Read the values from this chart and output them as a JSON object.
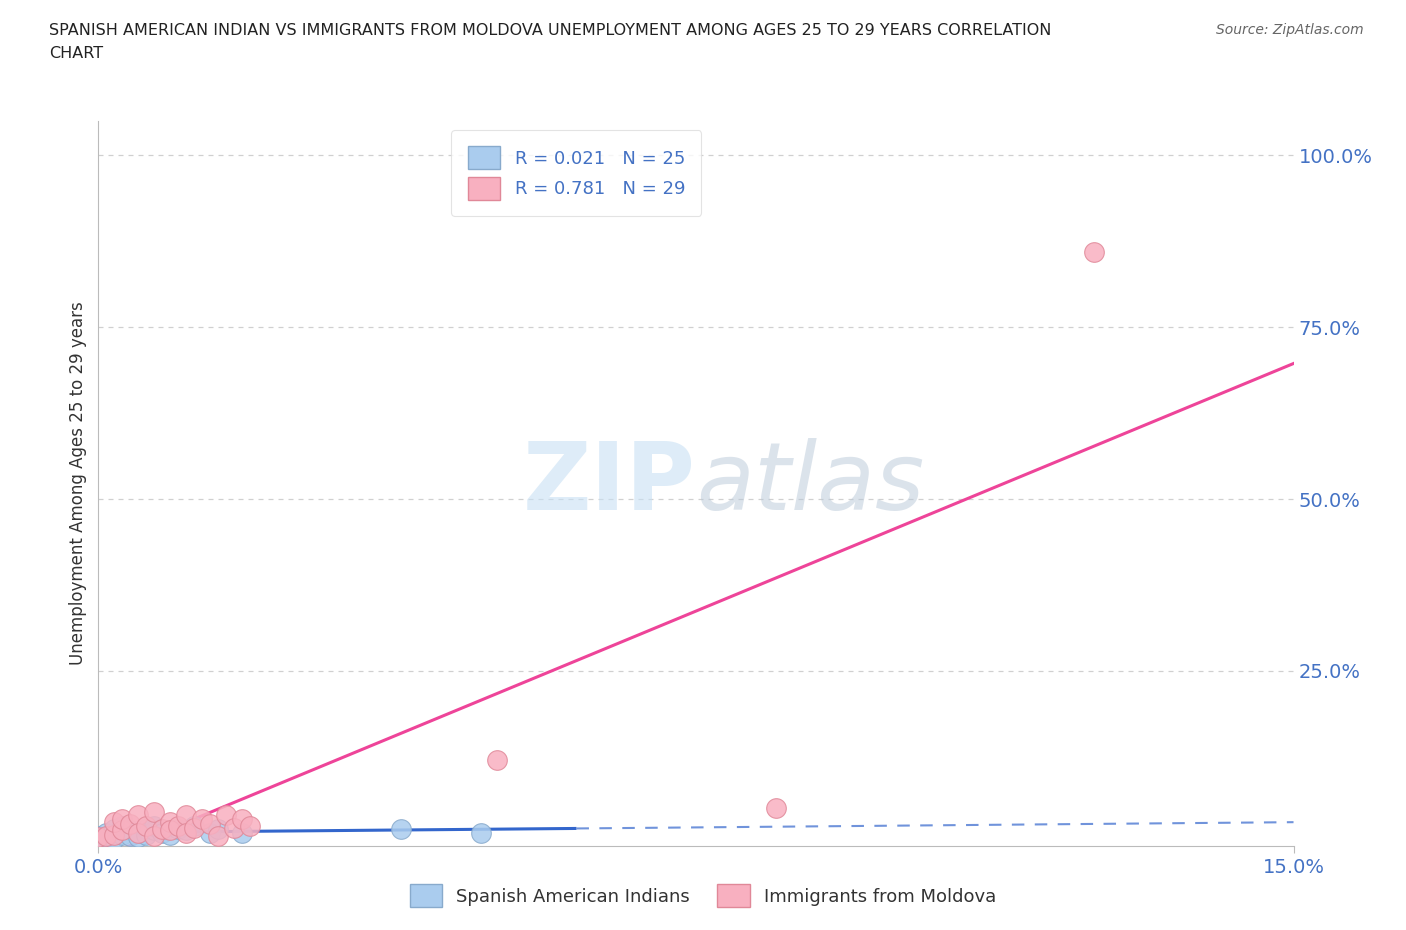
{
  "title_line1": "SPANISH AMERICAN INDIAN VS IMMIGRANTS FROM MOLDOVA UNEMPLOYMENT AMONG AGES 25 TO 29 YEARS CORRELATION",
  "title_line2": "CHART",
  "source": "Source: ZipAtlas.com",
  "ylabel": "Unemployment Among Ages 25 to 29 years",
  "xlim": [
    0.0,
    0.15
  ],
  "ylim": [
    -0.005,
    1.05
  ],
  "ytick_labels": [
    "25.0%",
    "50.0%",
    "75.0%",
    "100.0%"
  ],
  "ytick_positions": [
    0.25,
    0.5,
    0.75,
    1.0
  ],
  "grid_color": "#d0d0d0",
  "background_color": "#ffffff",
  "watermark_zip": "ZIP",
  "watermark_atlas": "atlas",
  "legend1_label": "R = 0.021   N = 25",
  "legend2_label": "R = 0.781   N = 29",
  "series1_color": "#aaccee",
  "series2_color": "#f8b0c0",
  "series1_edge": "#88aacc",
  "series2_edge": "#e08898",
  "line1_color": "#3366cc",
  "line2_color": "#ee4499",
  "series1_name": "Spanish American Indians",
  "series2_name": "Immigrants from Moldova",
  "series1_x": [
    0.0,
    0.001,
    0.001,
    0.002,
    0.002,
    0.003,
    0.003,
    0.004,
    0.004,
    0.005,
    0.005,
    0.006,
    0.006,
    0.007,
    0.007,
    0.008,
    0.009,
    0.01,
    0.011,
    0.012,
    0.014,
    0.015,
    0.018,
    0.038,
    0.048
  ],
  "series1_y": [
    0.01,
    0.015,
    0.008,
    0.02,
    0.005,
    0.012,
    0.025,
    0.018,
    0.01,
    0.015,
    0.008,
    0.02,
    0.012,
    0.018,
    0.025,
    0.015,
    0.012,
    0.02,
    0.018,
    0.025,
    0.015,
    0.02,
    0.015,
    0.02,
    0.015
  ],
  "series2_x": [
    0.0,
    0.001,
    0.002,
    0.002,
    0.003,
    0.003,
    0.004,
    0.005,
    0.005,
    0.006,
    0.007,
    0.007,
    0.008,
    0.009,
    0.009,
    0.01,
    0.011,
    0.011,
    0.012,
    0.013,
    0.014,
    0.015,
    0.016,
    0.017,
    0.018,
    0.019,
    0.05,
    0.085,
    0.125
  ],
  "series2_y": [
    0.008,
    0.01,
    0.012,
    0.03,
    0.018,
    0.035,
    0.028,
    0.04,
    0.015,
    0.025,
    0.01,
    0.045,
    0.02,
    0.03,
    0.018,
    0.025,
    0.04,
    0.015,
    0.022,
    0.035,
    0.028,
    0.01,
    0.04,
    0.022,
    0.035,
    0.025,
    0.12,
    0.05,
    0.86
  ],
  "series1_line_xend": 0.06,
  "series1_line_xdash_start": 0.06,
  "note_scatter_size": 200
}
